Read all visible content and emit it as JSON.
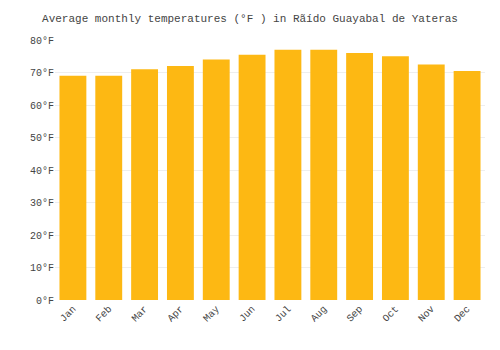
{
  "chart_data": {
    "type": "bar",
    "title": "Average monthly temperatures (°F ) in Rãído Guayabal de Yateras",
    "categories": [
      "Jan",
      "Feb",
      "Mar",
      "Apr",
      "May",
      "Jun",
      "Jul",
      "Aug",
      "Sep",
      "Oct",
      "Nov",
      "Dec"
    ],
    "values": [
      69,
      69,
      71,
      72,
      74,
      75.5,
      77,
      77,
      76,
      75,
      72.5,
      70.5
    ],
    "color": "#FDB813",
    "ylim": [
      0,
      80
    ],
    "yticks": [
      {
        "value": 0,
        "label": "0°F"
      },
      {
        "value": 10,
        "label": "10°F"
      },
      {
        "value": 20,
        "label": "20°F"
      },
      {
        "value": 30,
        "label": "30°F"
      },
      {
        "value": 40,
        "label": "40°F"
      },
      {
        "value": 50,
        "label": "50°F"
      },
      {
        "value": 60,
        "label": "60°F"
      },
      {
        "value": 70,
        "label": "70°F"
      },
      {
        "value": 80,
        "label": "80°F"
      }
    ],
    "grid": true
  }
}
